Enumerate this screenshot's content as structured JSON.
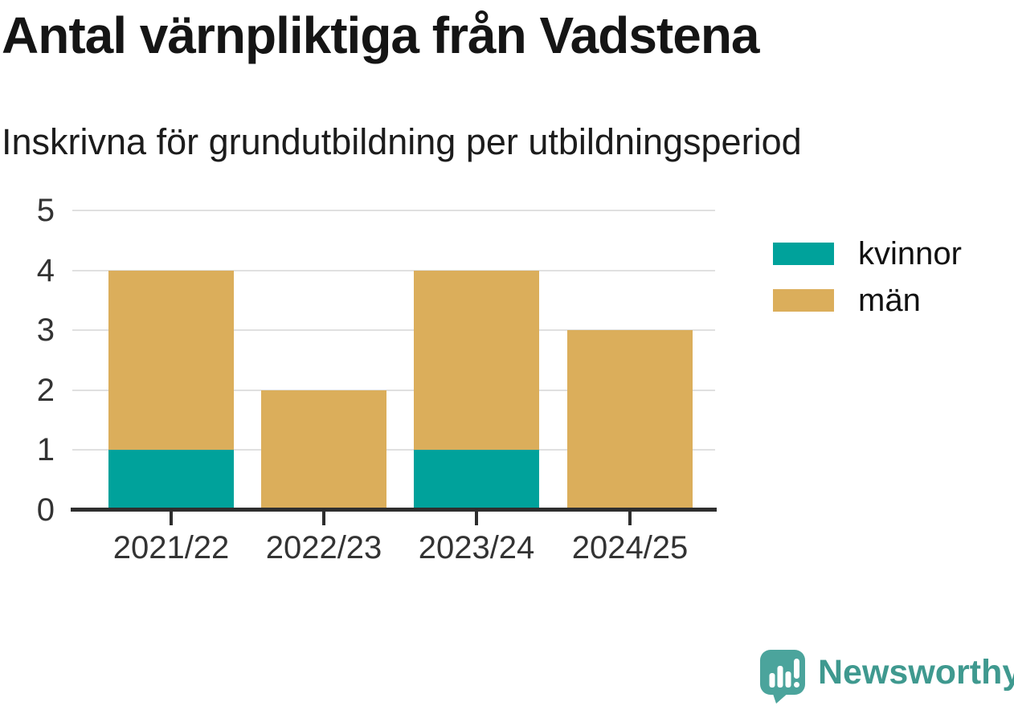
{
  "header": {
    "title": "Antal värnpliktiga från Vadstena",
    "subtitle": "Inskrivna för grundutbildning per utbildningsperiod"
  },
  "chart_data": {
    "type": "bar",
    "stacked": true,
    "title": "Antal värnpliktiga från Vadstena",
    "subtitle": "Inskrivna för grundutbildning per utbildningsperiod",
    "categories": [
      "2021/22",
      "2022/23",
      "2023/24",
      "2024/25"
    ],
    "series": [
      {
        "name": "kvinnor",
        "values": [
          1,
          0,
          1,
          0
        ],
        "color": "#00A29B"
      },
      {
        "name": "män",
        "values": [
          3,
          2,
          3,
          3
        ],
        "color": "#DBAE5B"
      }
    ],
    "xlabel": "",
    "ylabel": "",
    "ylim": [
      0,
      5
    ],
    "yticks": [
      0,
      1,
      2,
      3,
      4,
      5
    ],
    "grid": "horizontal-only",
    "legend_position": "right",
    "axis_color": "#2E2E2E",
    "grid_color": "#E0E0E0",
    "tick_label_color": "#333333"
  },
  "branding": {
    "logo_text": "Newsworthy",
    "logo_text_color": "#3F998F",
    "logo_icon": "bar-chart-speech-bubble-icon",
    "logo_icon_color": "#4BA49C"
  }
}
